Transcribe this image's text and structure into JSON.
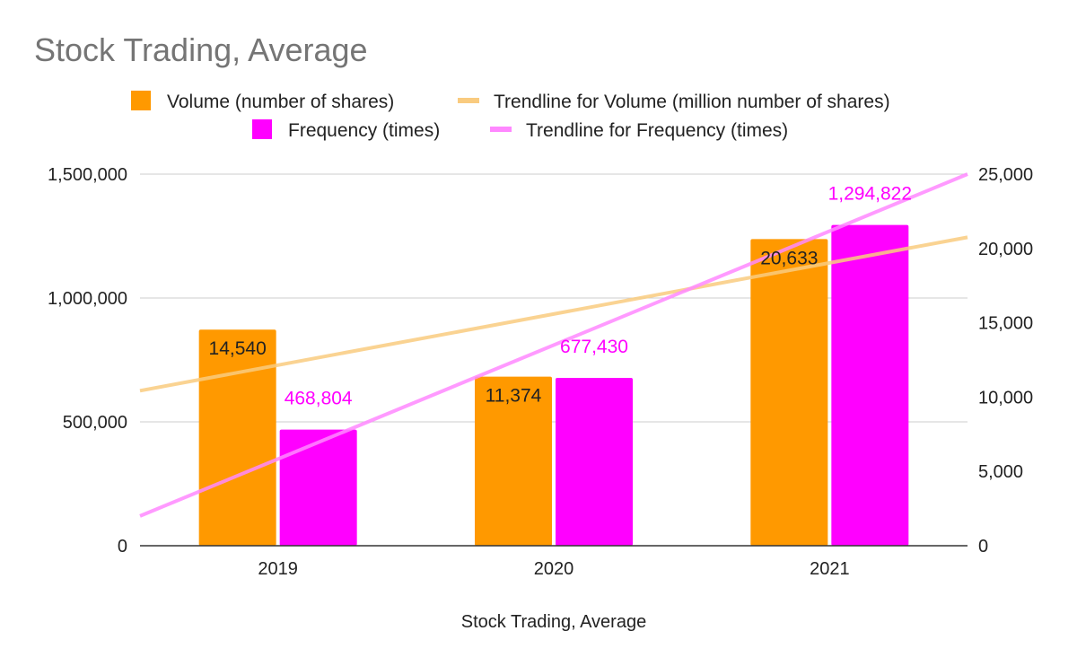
{
  "chart_data": {
    "type": "bar",
    "title": "Stock Trading, Average",
    "xlabel": "Stock Trading, Average",
    "categories": [
      "2019",
      "2020",
      "2021"
    ],
    "y_left": {
      "min": 0,
      "max": 1500000,
      "ticks": [
        "0",
        "500,000",
        "1,000,000",
        "1,500,000"
      ],
      "tick_values": [
        0,
        500000,
        1000000,
        1500000
      ]
    },
    "y_right": {
      "min": 0,
      "max": 25000,
      "ticks": [
        "0",
        "5,000",
        "10,000",
        "15,000",
        "20,000",
        "25,000"
      ],
      "tick_values": [
        0,
        5000,
        10000,
        15000,
        20000,
        25000
      ]
    },
    "grid": true,
    "legend_position": "top",
    "series": [
      {
        "name": "Volume (number of shares)",
        "axis": "right",
        "color": "#ff9900",
        "values": [
          14540,
          11374,
          20633
        ],
        "labels": [
          "14,540",
          "11,374",
          "20,633"
        ],
        "label_color": "#222222"
      },
      {
        "name": "Frequency (times)",
        "axis": "left",
        "color": "#ff00ff",
        "values": [
          468804,
          677430,
          1294822
        ],
        "labels": [
          "468,804",
          "677,430",
          "1,294,822"
        ],
        "label_color": "#ff00ff"
      }
    ],
    "trendlines": [
      {
        "name": "Trendline for Volume (million number of shares)",
        "color": "#f9cb7f",
        "axis": "right",
        "start_value": 10430,
        "end_value": 20750
      },
      {
        "name": "Trendline for Frequency (times)",
        "color": "#ff88ff",
        "axis": "left",
        "start_value": 120000,
        "end_value": 1500000
      }
    ]
  }
}
